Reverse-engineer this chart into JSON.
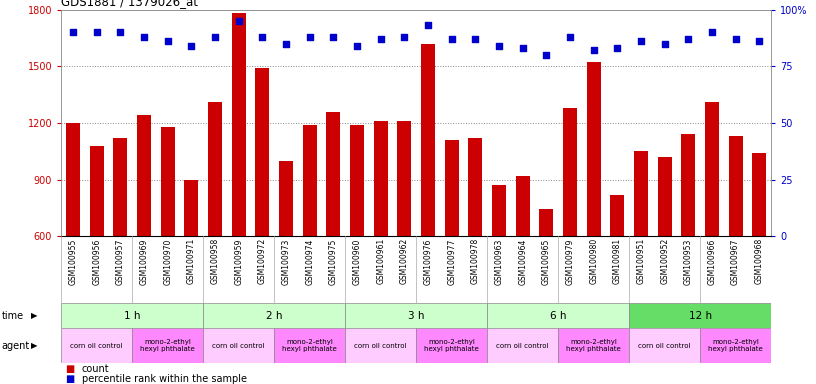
{
  "title": "GDS1881 / 1379026_at",
  "samples": [
    "GSM100955",
    "GSM100956",
    "GSM100957",
    "GSM100969",
    "GSM100970",
    "GSM100971",
    "GSM100958",
    "GSM100959",
    "GSM100972",
    "GSM100973",
    "GSM100974",
    "GSM100975",
    "GSM100960",
    "GSM100961",
    "GSM100962",
    "GSM100976",
    "GSM100977",
    "GSM100978",
    "GSM100963",
    "GSM100964",
    "GSM100965",
    "GSM100979",
    "GSM100980",
    "GSM100981",
    "GSM100951",
    "GSM100952",
    "GSM100953",
    "GSM100966",
    "GSM100967",
    "GSM100968"
  ],
  "counts": [
    1200,
    1080,
    1120,
    1240,
    1180,
    900,
    1310,
    1780,
    1490,
    1000,
    1190,
    1260,
    1190,
    1210,
    1210,
    1620,
    1110,
    1120,
    870,
    920,
    745,
    1280,
    1520,
    820,
    1050,
    1020,
    1140,
    1310,
    1130,
    1040
  ],
  "percentiles": [
    90,
    90,
    90,
    88,
    86,
    84,
    88,
    95,
    88,
    85,
    88,
    88,
    84,
    87,
    88,
    93,
    87,
    87,
    84,
    83,
    80,
    88,
    82,
    83,
    86,
    85,
    87,
    90,
    87,
    86
  ],
  "ymin": 600,
  "ymax": 1800,
  "yticks": [
    600,
    900,
    1200,
    1500,
    1800
  ],
  "right_yticks": [
    0,
    25,
    50,
    75,
    100
  ],
  "bar_color": "#cc0000",
  "dot_color": "#0000cc",
  "time_groups": [
    {
      "label": "1 h",
      "start": 0,
      "end": 6,
      "color": "#ccffcc"
    },
    {
      "label": "2 h",
      "start": 6,
      "end": 12,
      "color": "#ccffcc"
    },
    {
      "label": "3 h",
      "start": 12,
      "end": 18,
      "color": "#ccffcc"
    },
    {
      "label": "6 h",
      "start": 18,
      "end": 24,
      "color": "#ccffcc"
    },
    {
      "label": "12 h",
      "start": 24,
      "end": 30,
      "color": "#66dd66"
    }
  ],
  "agent_groups": [
    {
      "label": "corn oil control",
      "start": 0,
      "end": 3,
      "color": "#ffccff"
    },
    {
      "label": "mono-2-ethyl\nhexyl phthalate",
      "start": 3,
      "end": 6,
      "color": "#ff88ff"
    },
    {
      "label": "corn oil control",
      "start": 6,
      "end": 9,
      "color": "#ffccff"
    },
    {
      "label": "mono-2-ethyl\nhexyl phthalate",
      "start": 9,
      "end": 12,
      "color": "#ff88ff"
    },
    {
      "label": "corn oil control",
      "start": 12,
      "end": 15,
      "color": "#ffccff"
    },
    {
      "label": "mono-2-ethyl\nhexyl phthalate",
      "start": 15,
      "end": 18,
      "color": "#ff88ff"
    },
    {
      "label": "corn oil control",
      "start": 18,
      "end": 21,
      "color": "#ffccff"
    },
    {
      "label": "mono-2-ethyl\nhexyl phthalate",
      "start": 21,
      "end": 24,
      "color": "#ff88ff"
    },
    {
      "label": "corn oil control",
      "start": 24,
      "end": 27,
      "color": "#ffccff"
    },
    {
      "label": "mono-2-ethyl\nhexyl phthalate",
      "start": 27,
      "end": 30,
      "color": "#ff88ff"
    }
  ],
  "legend_count_color": "#cc0000",
  "legend_dot_color": "#0000cc",
  "bg_color": "#ffffff",
  "grid_color": "#888888",
  "label_bg": "#e0e0e0"
}
